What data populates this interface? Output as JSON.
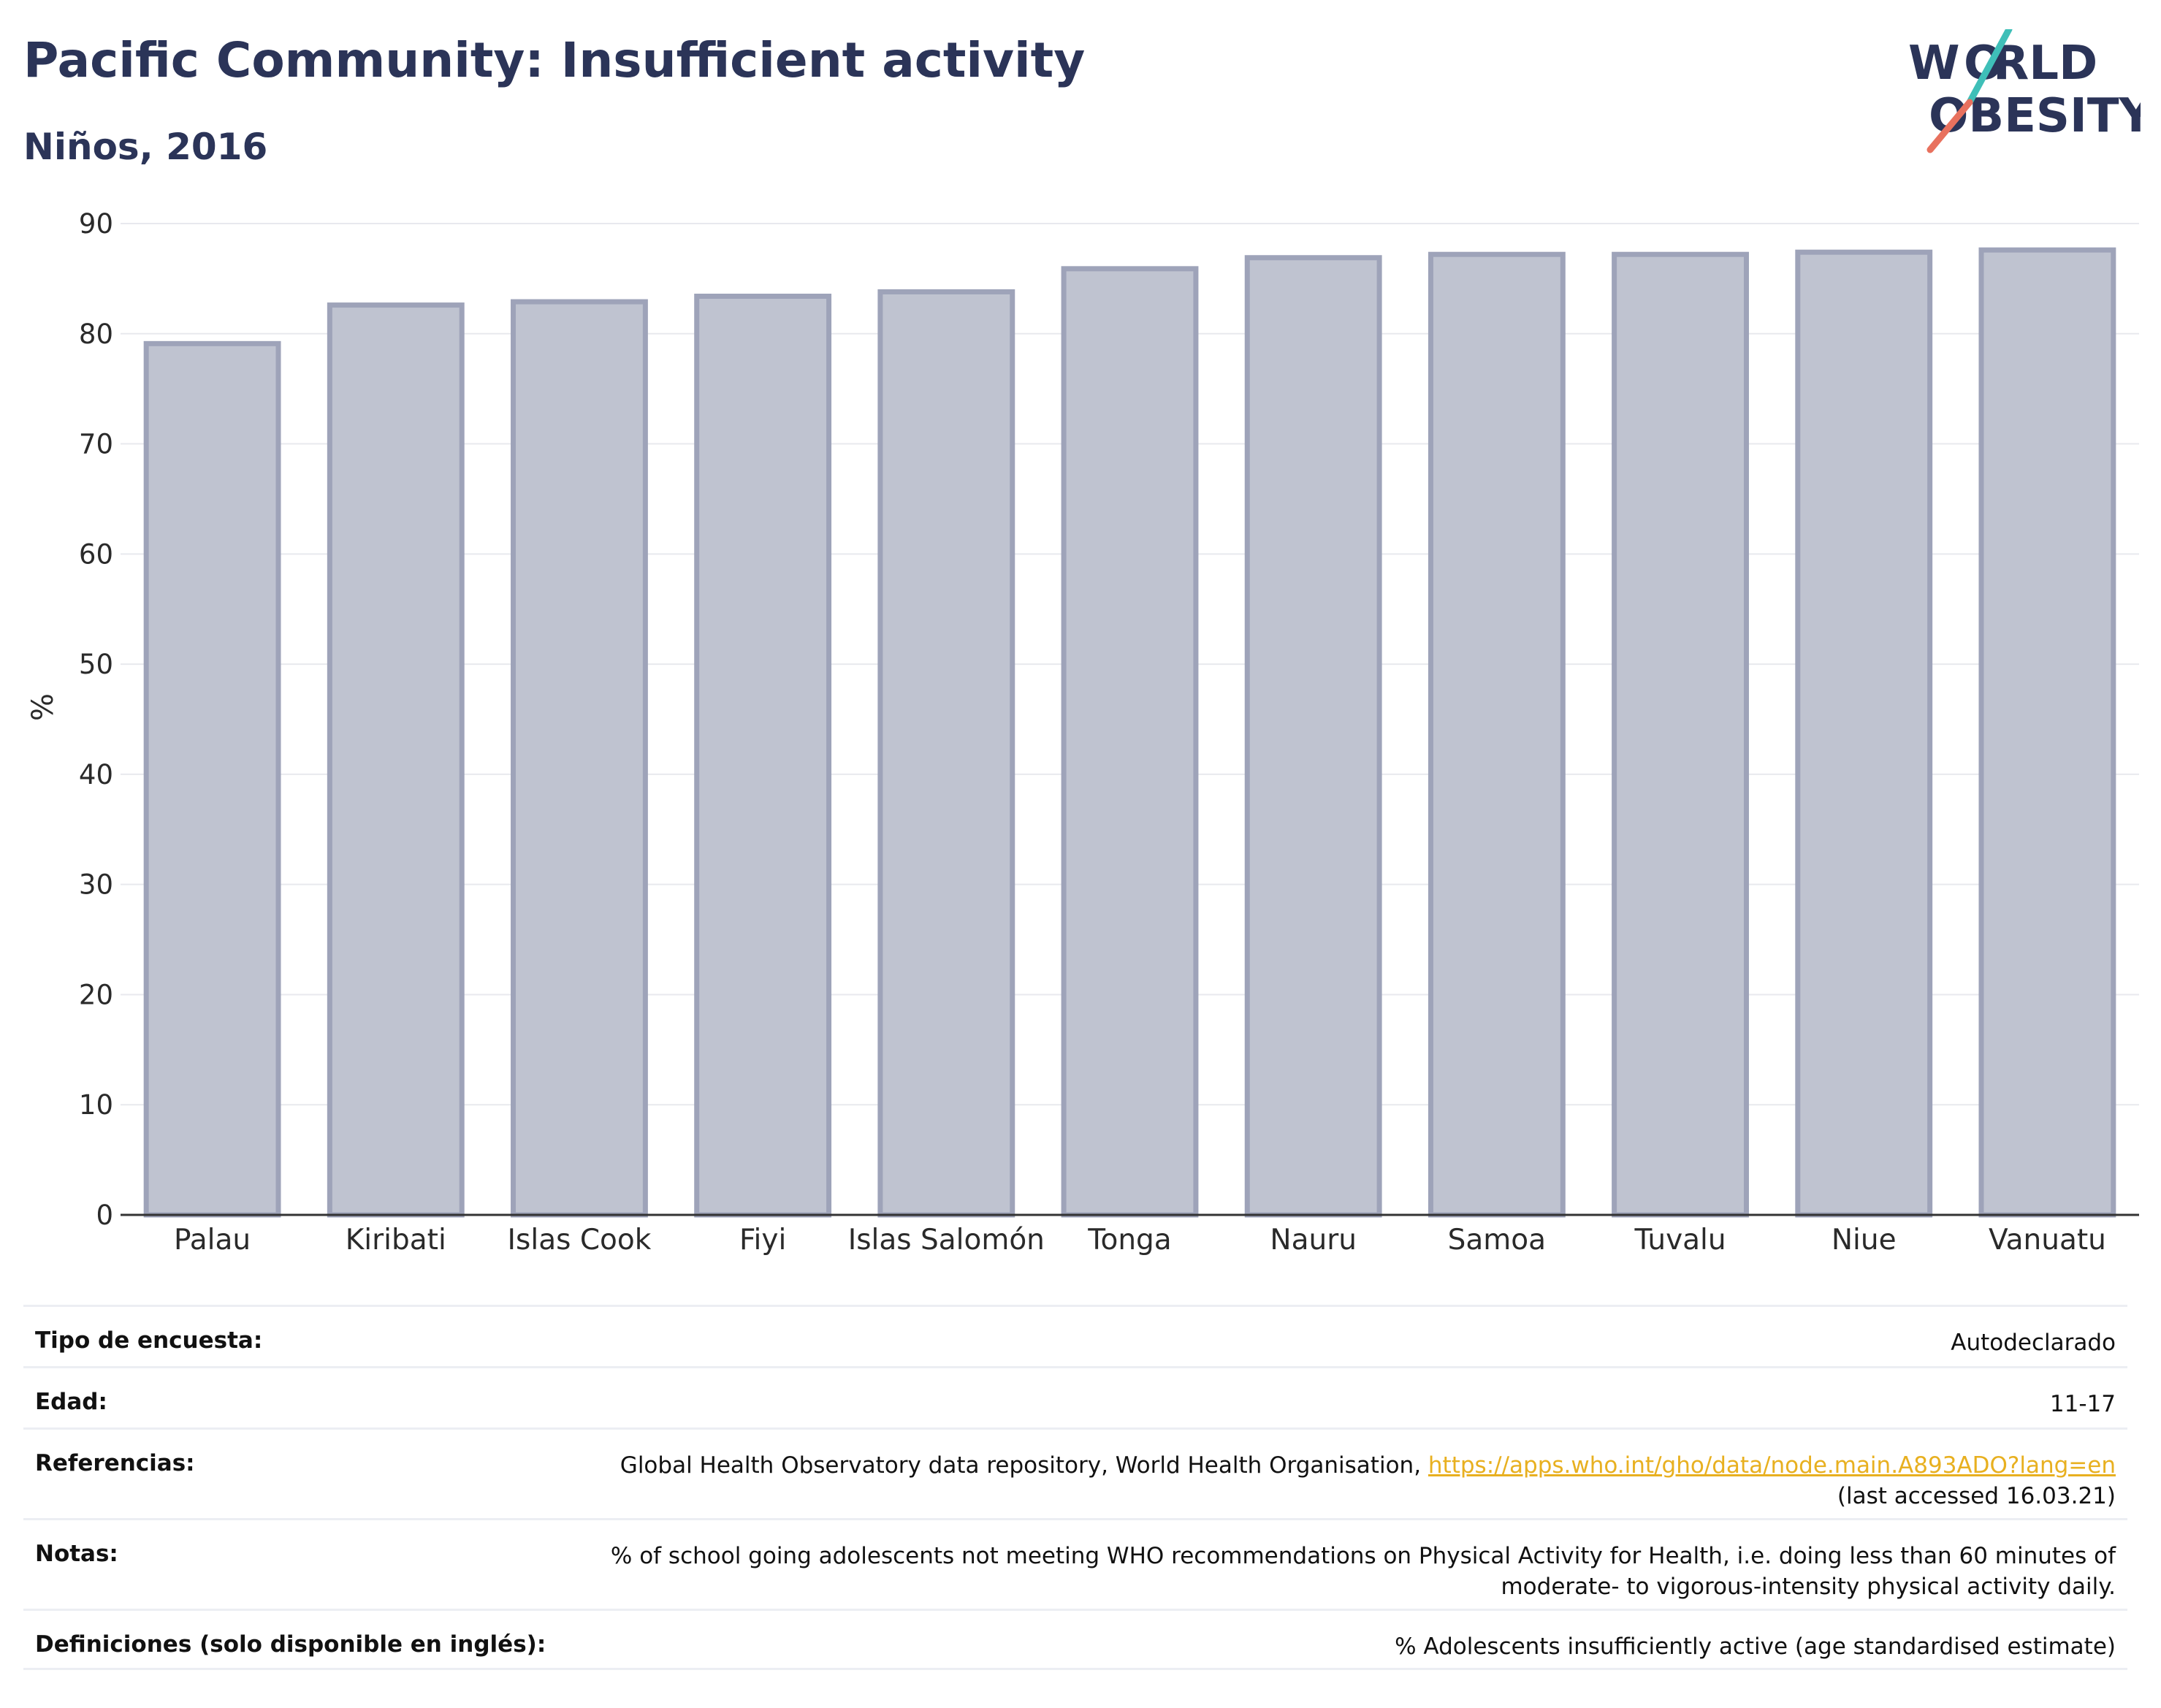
{
  "header": {
    "title": "Pacific Community: Insufficient activity",
    "subtitle": "Niños, 2016"
  },
  "logo": {
    "line1": "WORLD",
    "line2": "OBESITY",
    "accent_colors": [
      "#3fbfb8",
      "#e8715e"
    ]
  },
  "chart_data": {
    "type": "bar",
    "categories": [
      "Palau",
      "Kiribati",
      "Islas Cook",
      "Fiyi",
      "Islas Salomón",
      "Tonga",
      "Nauru",
      "Samoa",
      "Tuvalu",
      "Niue",
      "Vanuatu"
    ],
    "values": [
      79.1,
      82.6,
      82.9,
      83.4,
      83.8,
      85.9,
      86.9,
      87.2,
      87.2,
      87.4,
      87.6
    ],
    "xlabel": "",
    "ylabel": "%",
    "ylim": [
      0,
      90
    ],
    "yticks": [
      0,
      10,
      20,
      30,
      40,
      50,
      60,
      70,
      80,
      90
    ],
    "grid": true,
    "bar_color": "#bfc3d0",
    "bar_edge_color": "#9ea3b9"
  },
  "info": {
    "rows": [
      {
        "key": "Tipo de encuesta:",
        "value": "Autodeclarado"
      },
      {
        "key": "Edad:",
        "value": "11-17"
      },
      {
        "key": "Referencias:",
        "value": "Global Health Observatory data repository, World Health Organisation, ",
        "link": "https://apps.who.int/gho/data/node.main.A893ADO?lang=en",
        "value_after": "(last accessed 16.03.21)"
      },
      {
        "key": "Notas:",
        "value": "% of school going adolescents not meeting WHO recommendations on Physical Activity for Health, i.e. doing less than 60 minutes of moderate- to vigorous-intensity physical activity daily."
      },
      {
        "key": "Definiciones (solo disponible en inglés):",
        "value": "% Adolescents insufficiently active (age standardised estimate)"
      }
    ]
  }
}
